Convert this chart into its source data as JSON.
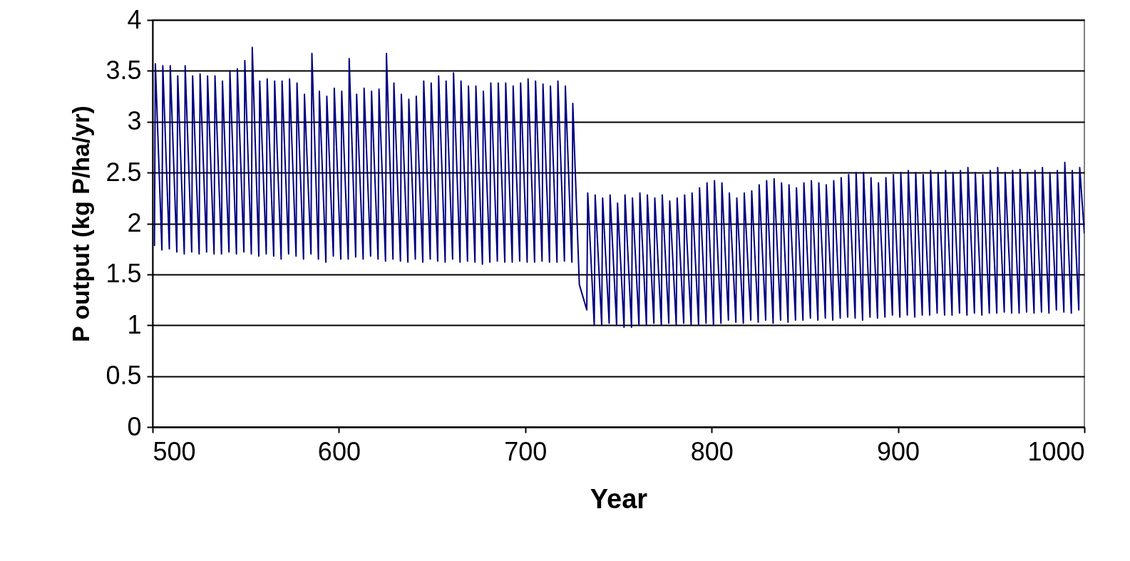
{
  "chart_data": {
    "type": "line",
    "xlabel": "Year",
    "ylabel": "P output (kg P/ha/yr)",
    "xlim": [
      500,
      1000
    ],
    "xticks": [
      500,
      600,
      700,
      800,
      900,
      1000
    ],
    "ylim": [
      0,
      4
    ],
    "yticks": [
      0,
      0.5,
      1,
      1.5,
      2,
      2.5,
      3,
      3.5,
      4
    ],
    "grid": "y",
    "legend": false,
    "marker": "none",
    "line_style": "solid",
    "series": [
      {
        "color": "#000080",
        "x": [
          501,
          501.5,
          505,
          505.5,
          509,
          509.5,
          513,
          513.5,
          517,
          517.5,
          521,
          521.5,
          525,
          525.5,
          529,
          529.5,
          533,
          533.5,
          537,
          537.5,
          541,
          541.5,
          545,
          545.5,
          549,
          549.5,
          553,
          553.5,
          557,
          557.5,
          561,
          561.5,
          565,
          565.5,
          569,
          569.5,
          573,
          573.5,
          577,
          577.5,
          581,
          581.5,
          585,
          585.5,
          589,
          589.5,
          593,
          593.5,
          597,
          597.5,
          601,
          601.5,
          605,
          605.5,
          609,
          609.5,
          613,
          613.5,
          617,
          617.5,
          621,
          621.5,
          625,
          625.5,
          629,
          629.5,
          633,
          633.5,
          637,
          637.5,
          641,
          641.5,
          645,
          645.5,
          649,
          649.5,
          653,
          653.5,
          657,
          657.5,
          661,
          661.5,
          665,
          665.5,
          669,
          669.5,
          673,
          673.5,
          677,
          677.5,
          681,
          681.5,
          685,
          685.5,
          689,
          689.5,
          693,
          693.5,
          697,
          697.5,
          701,
          701.5,
          705,
          705.5,
          709,
          709.5,
          713,
          713.5,
          717,
          717.5,
          721,
          721.5,
          725,
          725.5,
          729,
          733,
          733.5,
          737,
          737.5,
          741,
          741.5,
          745,
          745.5,
          749,
          749.5,
          753,
          753.5,
          757,
          757.5,
          761,
          761.5,
          765,
          765.5,
          769,
          769.5,
          773,
          773.5,
          777,
          777.5,
          781,
          781.5,
          785,
          785.5,
          789,
          789.5,
          793,
          793.5,
          797,
          797.5,
          801,
          801.5,
          805,
          805.5,
          809,
          809.5,
          813,
          813.5,
          817,
          817.5,
          821,
          821.5,
          825,
          825.5,
          829,
          829.5,
          833,
          833.5,
          837,
          837.5,
          841,
          841.5,
          845,
          845.5,
          849,
          849.5,
          853,
          853.5,
          857,
          857.5,
          861,
          861.5,
          865,
          865.5,
          869,
          869.5,
          873,
          873.5,
          877,
          877.5,
          881,
          881.5,
          885,
          885.5,
          889,
          889.5,
          893,
          893.5,
          897,
          897.5,
          901,
          901.5,
          905,
          905.5,
          909,
          909.5,
          913,
          913.5,
          917,
          917.5,
          921,
          921.5,
          925,
          925.5,
          929,
          929.5,
          933,
          933.5,
          937,
          937.5,
          941,
          941.5,
          945,
          945.5,
          949,
          949.5,
          953,
          953.5,
          957,
          957.5,
          961,
          961.5,
          965,
          965.5,
          969,
          969.5,
          973,
          973.5,
          977,
          977.5,
          981,
          981.5,
          985,
          985.5,
          989,
          989.5,
          993,
          993.5,
          997,
          997.5,
          1000
        ],
        "values": [
          1.78,
          3.57,
          1.74,
          3.55,
          1.75,
          3.55,
          1.72,
          3.45,
          1.7,
          3.55,
          1.72,
          3.45,
          1.7,
          3.47,
          1.72,
          3.45,
          1.7,
          3.45,
          1.7,
          3.4,
          1.72,
          3.5,
          1.7,
          3.52,
          1.72,
          3.6,
          1.7,
          3.73,
          1.68,
          3.4,
          1.7,
          3.42,
          1.68,
          3.4,
          1.65,
          3.4,
          1.7,
          3.42,
          1.68,
          3.38,
          1.65,
          3.27,
          1.7,
          3.67,
          1.65,
          3.3,
          1.62,
          3.25,
          1.68,
          3.33,
          1.65,
          3.3,
          1.65,
          3.62,
          1.67,
          3.27,
          1.65,
          3.33,
          1.68,
          3.3,
          1.65,
          3.32,
          1.63,
          3.67,
          1.65,
          3.38,
          1.63,
          3.27,
          1.62,
          3.22,
          1.65,
          3.25,
          1.62,
          3.4,
          1.65,
          3.38,
          1.63,
          3.45,
          1.62,
          3.4,
          1.65,
          3.48,
          1.62,
          3.4,
          1.63,
          3.35,
          1.62,
          3.35,
          1.6,
          3.3,
          1.62,
          3.38,
          1.63,
          3.38,
          1.62,
          3.38,
          1.62,
          3.35,
          1.63,
          3.38,
          1.62,
          3.42,
          1.62,
          3.4,
          1.63,
          3.37,
          1.62,
          3.35,
          1.62,
          3.4,
          1.63,
          3.35,
          1.62,
          3.18,
          1.4,
          1.15,
          2.3,
          1.0,
          2.28,
          1.0,
          2.25,
          1.02,
          2.28,
          1.0,
          2.2,
          0.98,
          2.28,
          0.98,
          2.25,
          1.0,
          2.3,
          1.0,
          2.28,
          1.02,
          2.25,
          1.0,
          2.28,
          1.02,
          2.22,
          1.0,
          2.25,
          1.02,
          2.28,
          1.0,
          2.3,
          1.0,
          2.35,
          1.02,
          2.4,
          1.0,
          2.42,
          1.02,
          2.4,
          1.05,
          2.3,
          1.03,
          2.25,
          1.02,
          2.3,
          1.05,
          2.32,
          1.03,
          2.38,
          1.05,
          2.42,
          1.02,
          2.44,
          1.05,
          2.4,
          1.03,
          2.38,
          1.05,
          2.35,
          1.05,
          2.4,
          1.07,
          2.42,
          1.05,
          2.4,
          1.07,
          2.38,
          1.05,
          2.42,
          1.07,
          2.45,
          1.08,
          2.48,
          1.07,
          2.5,
          1.05,
          2.5,
          1.08,
          2.45,
          1.07,
          2.4,
          1.08,
          2.45,
          1.1,
          2.48,
          1.08,
          2.5,
          1.1,
          2.52,
          1.08,
          2.5,
          1.1,
          2.48,
          1.1,
          2.52,
          1.12,
          2.5,
          1.1,
          2.52,
          1.1,
          2.5,
          1.12,
          2.52,
          1.1,
          2.55,
          1.12,
          2.5,
          1.1,
          2.48,
          1.12,
          2.52,
          1.12,
          2.55,
          1.13,
          2.5,
          1.12,
          2.52,
          1.12,
          2.53,
          1.13,
          2.5,
          1.12,
          2.52,
          1.13,
          2.55,
          1.12,
          2.5,
          1.15,
          2.52,
          1.13,
          2.6,
          1.12,
          2.52,
          1.15,
          2.55,
          1.9
        ]
      }
    ]
  }
}
